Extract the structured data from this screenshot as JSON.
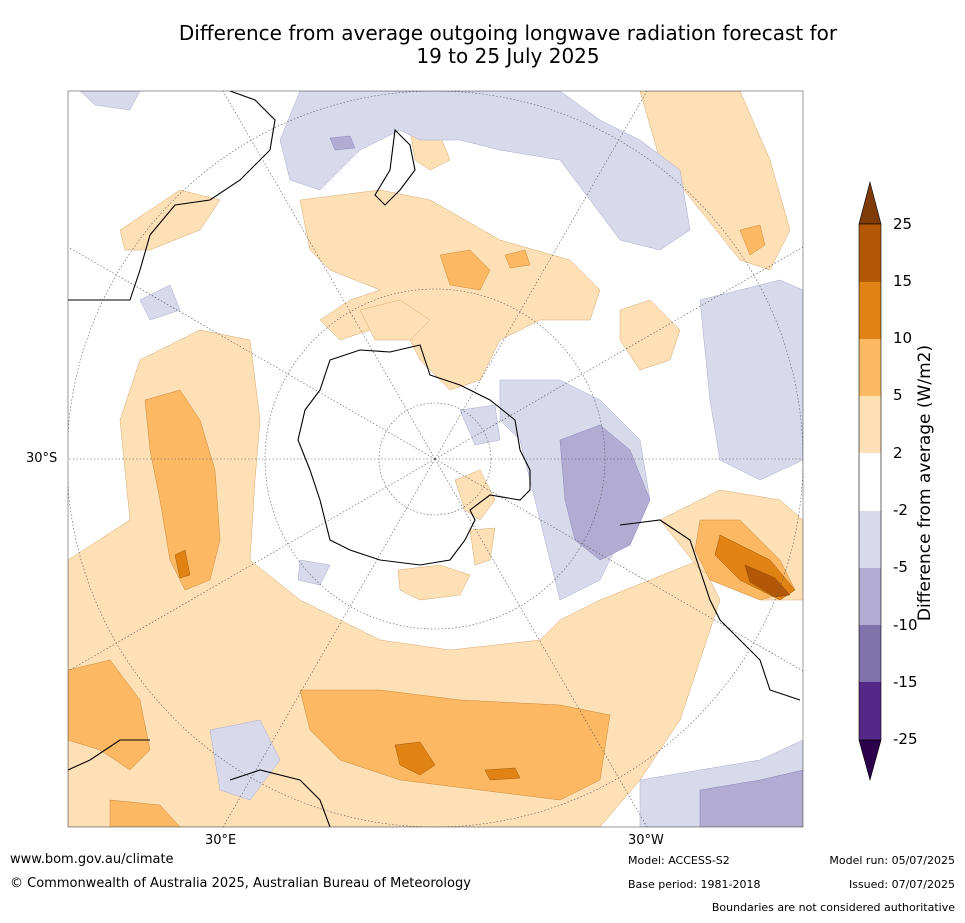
{
  "title_line1": "Difference from average outgoing longwave radiation forecast for",
  "title_line2": "19 to 25 July 2025",
  "map": {
    "projection": "south-polar",
    "lat_label": "30°S",
    "lon_labels": [
      "30°E",
      "30°W"
    ]
  },
  "colorbar": {
    "label": "Difference from average (W/m2)",
    "ticks": [
      "25",
      "15",
      "10",
      "5",
      "2",
      "-2",
      "-5",
      "-10",
      "-15",
      "-25"
    ],
    "colors": [
      "#7f3b08",
      "#b35806",
      "#e08214",
      "#fdb863",
      "#fee0b6",
      "#ffffff",
      "#d8daeb",
      "#b2abd2",
      "#8073ac",
      "#542788",
      "#2d004b"
    ]
  },
  "footer": {
    "website": "www.bom.gov.au/climate",
    "copyright": "© Commonwealth of Australia 2025, Australian Bureau of Meteorology",
    "model": "Model: ACCESS-S2",
    "base_period": "Base period: 1981-2018",
    "model_run": "Model run: 05/07/2025",
    "issued": "Issued: 07/07/2025",
    "disclaimer": "Boundaries are not considered authoritative"
  }
}
